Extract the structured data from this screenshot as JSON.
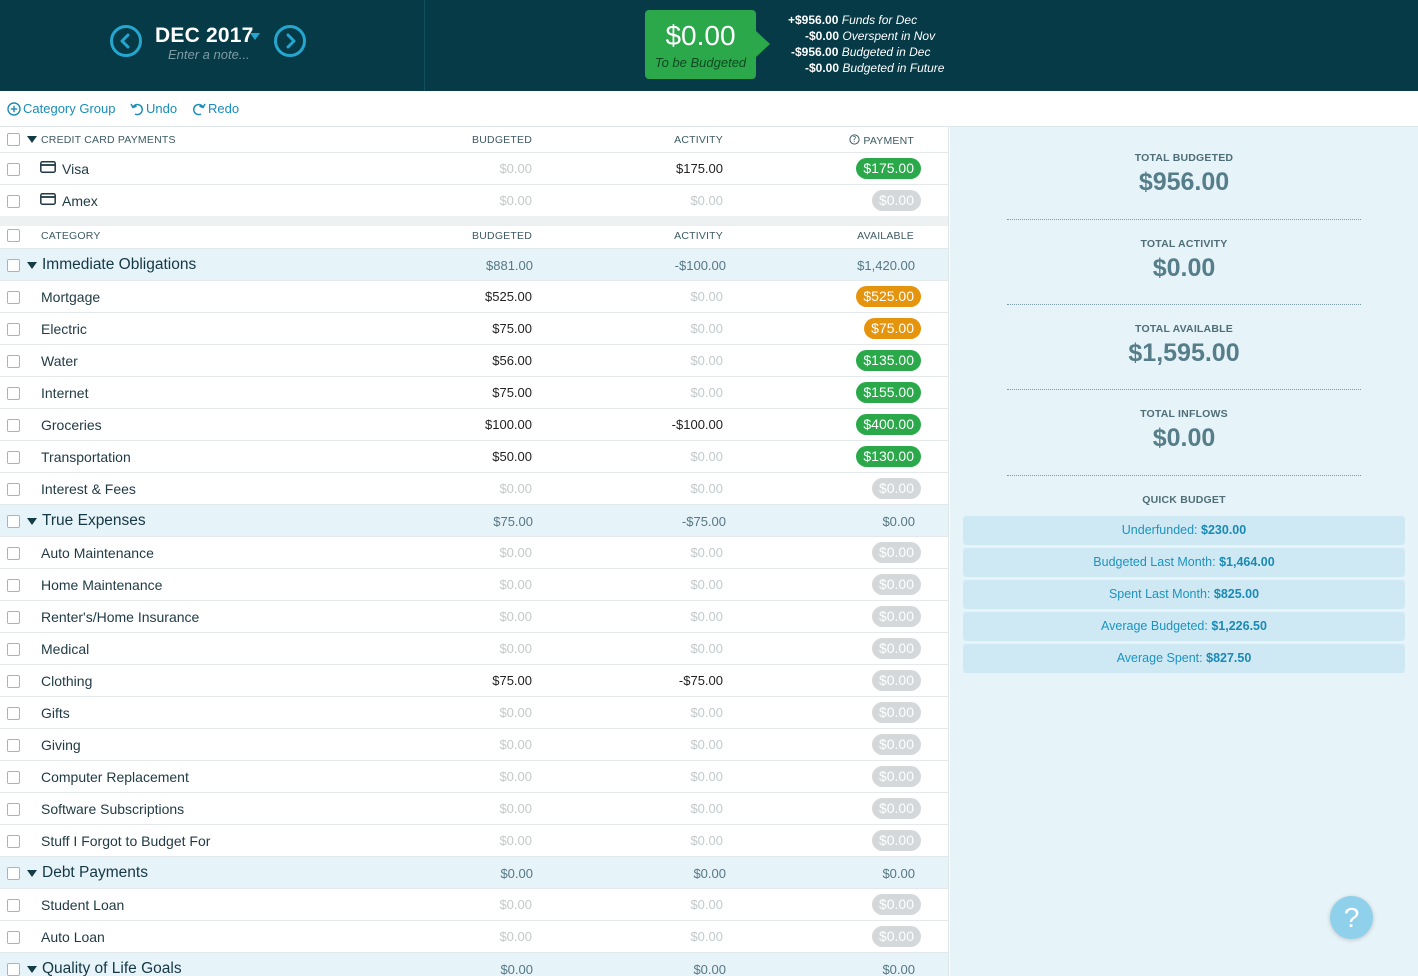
{
  "header": {
    "month": "DEC 2017",
    "note_placeholder": "Enter a note...",
    "to_be_budgeted": {
      "amount": "$0.00",
      "label": "To be Budgeted"
    },
    "funds": [
      {
        "amount": "+$956.00",
        "label": "Funds for Dec"
      },
      {
        "amount": "-$0.00",
        "label": "Overspent in Nov"
      },
      {
        "amount": "-$956.00",
        "label": "Budgeted in Dec"
      },
      {
        "amount": "-$0.00",
        "label": "Budgeted in Future"
      }
    ]
  },
  "toolbar": {
    "category_group": "Category Group",
    "undo": "Undo",
    "redo": "Redo"
  },
  "cc_header": {
    "name": "CREDIT CARD PAYMENTS",
    "budgeted": "BUDGETED",
    "activity": "ACTIVITY",
    "payment": "PAYMENT"
  },
  "cc_rows": [
    {
      "name": "Visa",
      "budgeted": "$0.00",
      "activity": "$175.00",
      "payment": "$175.00",
      "status": "green"
    },
    {
      "name": "Amex",
      "budgeted": "$0.00",
      "activity": "$0.00",
      "payment": "$0.00",
      "status": "gray"
    }
  ],
  "cat_header": {
    "name": "CATEGORY",
    "budgeted": "BUDGETED",
    "activity": "ACTIVITY",
    "available": "AVAILABLE"
  },
  "rows": [
    {
      "type": "group",
      "name": "Immediate Obligations",
      "budgeted": "$881.00",
      "activity": "-$100.00",
      "available": "$1,420.00"
    },
    {
      "type": "cat",
      "name": "Mortgage",
      "budgeted": "$525.00",
      "activity": "$0.00",
      "available": "$525.00",
      "status": "orange"
    },
    {
      "type": "cat",
      "name": "Electric",
      "budgeted": "$75.00",
      "activity": "$0.00",
      "available": "$75.00",
      "status": "orange"
    },
    {
      "type": "cat",
      "name": "Water",
      "budgeted": "$56.00",
      "activity": "$0.00",
      "available": "$135.00",
      "status": "green"
    },
    {
      "type": "cat",
      "name": "Internet",
      "budgeted": "$75.00",
      "activity": "$0.00",
      "available": "$155.00",
      "status": "green"
    },
    {
      "type": "cat",
      "name": "Groceries",
      "budgeted": "$100.00",
      "activity": "-$100.00",
      "available": "$400.00",
      "status": "green"
    },
    {
      "type": "cat",
      "name": "Transportation",
      "budgeted": "$50.00",
      "activity": "$0.00",
      "available": "$130.00",
      "status": "green"
    },
    {
      "type": "cat",
      "name": "Interest & Fees",
      "budgeted": "$0.00",
      "activity": "$0.00",
      "available": "$0.00",
      "status": "gray"
    },
    {
      "type": "group",
      "name": "True Expenses",
      "budgeted": "$75.00",
      "activity": "-$75.00",
      "available": "$0.00"
    },
    {
      "type": "cat",
      "name": "Auto Maintenance",
      "budgeted": "$0.00",
      "activity": "$0.00",
      "available": "$0.00",
      "status": "gray"
    },
    {
      "type": "cat",
      "name": "Home Maintenance",
      "budgeted": "$0.00",
      "activity": "$0.00",
      "available": "$0.00",
      "status": "gray"
    },
    {
      "type": "cat",
      "name": "Renter's/Home Insurance",
      "budgeted": "$0.00",
      "activity": "$0.00",
      "available": "$0.00",
      "status": "gray"
    },
    {
      "type": "cat",
      "name": "Medical",
      "budgeted": "$0.00",
      "activity": "$0.00",
      "available": "$0.00",
      "status": "gray"
    },
    {
      "type": "cat",
      "name": "Clothing",
      "budgeted": "$75.00",
      "activity": "-$75.00",
      "available": "$0.00",
      "status": "gray"
    },
    {
      "type": "cat",
      "name": "Gifts",
      "budgeted": "$0.00",
      "activity": "$0.00",
      "available": "$0.00",
      "status": "gray"
    },
    {
      "type": "cat",
      "name": "Giving",
      "budgeted": "$0.00",
      "activity": "$0.00",
      "available": "$0.00",
      "status": "gray"
    },
    {
      "type": "cat",
      "name": "Computer Replacement",
      "budgeted": "$0.00",
      "activity": "$0.00",
      "available": "$0.00",
      "status": "gray"
    },
    {
      "type": "cat",
      "name": "Software Subscriptions",
      "budgeted": "$0.00",
      "activity": "$0.00",
      "available": "$0.00",
      "status": "gray"
    },
    {
      "type": "cat",
      "name": "Stuff I Forgot to Budget For",
      "budgeted": "$0.00",
      "activity": "$0.00",
      "available": "$0.00",
      "status": "gray"
    },
    {
      "type": "group",
      "name": "Debt Payments",
      "budgeted": "$0.00",
      "activity": "$0.00",
      "available": "$0.00"
    },
    {
      "type": "cat",
      "name": "Student Loan",
      "budgeted": "$0.00",
      "activity": "$0.00",
      "available": "$0.00",
      "status": "gray"
    },
    {
      "type": "cat",
      "name": "Auto Loan",
      "budgeted": "$0.00",
      "activity": "$0.00",
      "available": "$0.00",
      "status": "gray"
    },
    {
      "type": "group",
      "name": "Quality of Life Goals",
      "budgeted": "$0.00",
      "activity": "$0.00",
      "available": "$0.00"
    }
  ],
  "sidebar": {
    "totals": [
      {
        "label": "TOTAL BUDGETED",
        "value": "$956.00"
      },
      {
        "label": "TOTAL ACTIVITY",
        "value": "$0.00"
      },
      {
        "label": "TOTAL AVAILABLE",
        "value": "$1,595.00"
      },
      {
        "label": "TOTAL INFLOWS",
        "value": "$0.00"
      }
    ],
    "quick_budget_title": "QUICK BUDGET",
    "quick_budget": [
      {
        "label": "Underfunded:",
        "value": "$230.00"
      },
      {
        "label": "Budgeted Last Month:",
        "value": "$1,464.00"
      },
      {
        "label": "Spent Last Month:",
        "value": "$825.00"
      },
      {
        "label": "Average Budgeted:",
        "value": "$1,226.50"
      },
      {
        "label": "Average Spent:",
        "value": "$827.50"
      }
    ]
  },
  "help_label": "?",
  "colors": {
    "header_bg": "#063a47",
    "accent": "#24a7cf",
    "green": "#2aa84a",
    "orange": "#e5940e",
    "gray": "#d4d8da"
  }
}
